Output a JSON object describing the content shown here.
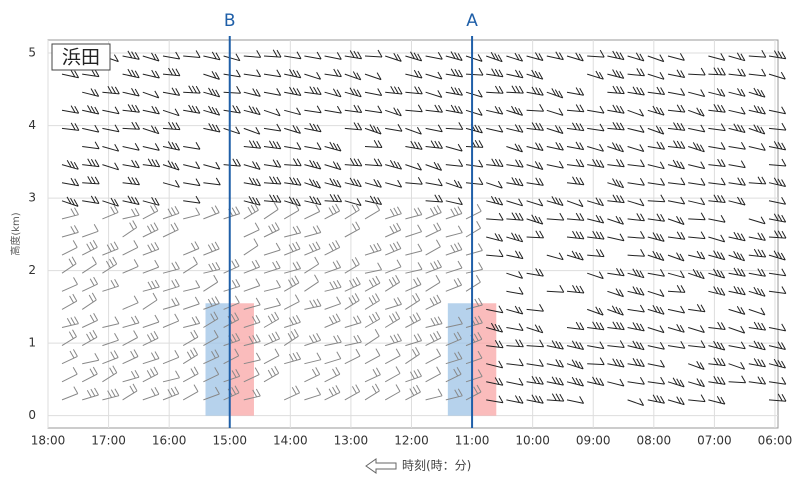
{
  "chart_data": {
    "type": "wind-profile",
    "title": "浜田",
    "xlabel": "時刻(時：分)",
    "ylabel": "高度(km)",
    "xlim": [
      18,
      5.95
    ],
    "ylim": [
      -0.17,
      5.18
    ],
    "xticks": [
      {
        "value": 18,
        "label": "18:00"
      },
      {
        "value": 17,
        "label": "17:00"
      },
      {
        "value": 16,
        "label": "16:00"
      },
      {
        "value": 15,
        "label": "15:00"
      },
      {
        "value": 14,
        "label": "14:00"
      },
      {
        "value": 13,
        "label": "13:00"
      },
      {
        "value": 12,
        "label": "12:00"
      },
      {
        "value": 11,
        "label": "11:00"
      },
      {
        "value": 10,
        "label": "10:00"
      },
      {
        "value": 9,
        "label": "09:00"
      },
      {
        "value": 8,
        "label": "08:00"
      },
      {
        "value": 7,
        "label": "07:00"
      },
      {
        "value": 6,
        "label": "06:00"
      }
    ],
    "yticks": [
      0,
      1,
      2,
      3,
      4,
      5
    ],
    "grid": true,
    "markers": [
      {
        "label": "B",
        "x": 15,
        "color": "#1f5fa8"
      },
      {
        "label": "A",
        "x": 11,
        "color": "#1f5fa8"
      }
    ],
    "bands": [
      {
        "x": [
          15.4,
          15
        ],
        "y": [
          0,
          1.55
        ],
        "color": "#9dc3e6"
      },
      {
        "x": [
          15,
          14.6
        ],
        "y": [
          0,
          1.55
        ],
        "color": "#f8a5a5"
      },
      {
        "x": [
          11.4,
          11
        ],
        "y": [
          0,
          1.55
        ],
        "color": "#9dc3e6"
      },
      {
        "x": [
          11,
          10.6
        ],
        "y": [
          0,
          1.55
        ],
        "color": "#f8a5a5"
      }
    ]
  }
}
